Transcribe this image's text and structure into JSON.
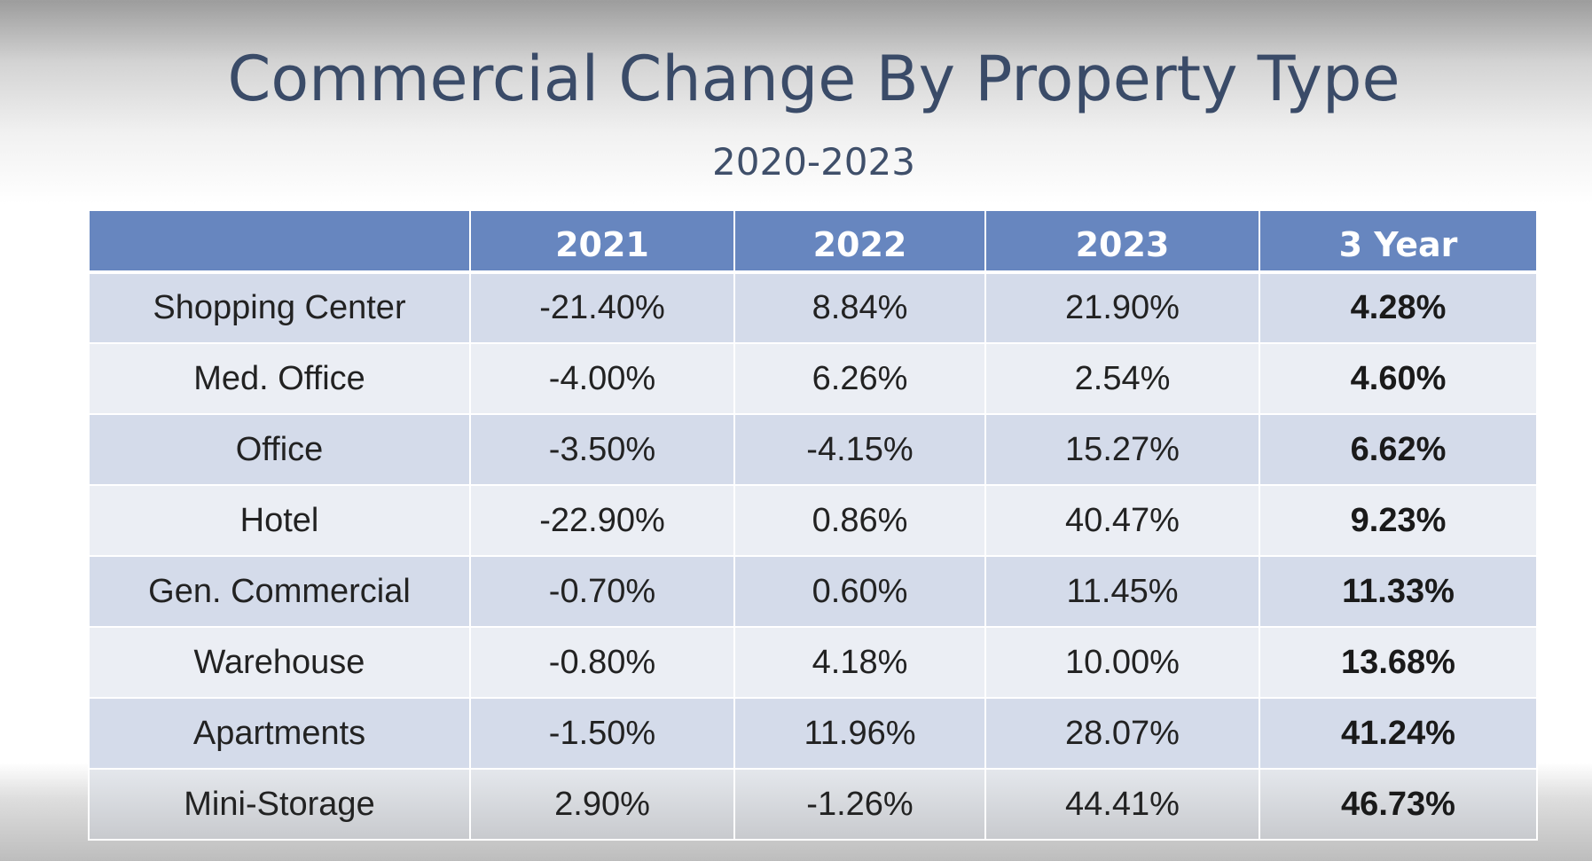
{
  "title": "Commercial Change By Property Type",
  "subtitle": "2020-2023",
  "chart_data": {
    "type": "table",
    "title": "Commercial Change By Property Type",
    "subtitle": "2020-2023",
    "columns": [
      "",
      "2021",
      "2022",
      "2023",
      "3 Year"
    ],
    "rows": [
      [
        "Shopping Center",
        "-21.40%",
        "8.84%",
        "21.90%",
        "4.28%"
      ],
      [
        "Med. Office",
        "-4.00%",
        "6.26%",
        "2.54%",
        "4.60%"
      ],
      [
        "Office",
        "-3.50%",
        "-4.15%",
        "15.27%",
        "6.62%"
      ],
      [
        "Hotel",
        "-22.90%",
        "0.86%",
        "40.47%",
        "9.23%"
      ],
      [
        "Gen. Commercial",
        "-0.70%",
        "0.60%",
        "11.45%",
        "11.33%"
      ],
      [
        "Warehouse",
        "-0.80%",
        "4.18%",
        "10.00%",
        "13.68%"
      ],
      [
        "Apartments",
        "-1.50%",
        "11.96%",
        "28.07%",
        "41.24%"
      ],
      [
        "Mini-Storage",
        "2.90%",
        "-1.26%",
        "44.41%",
        "46.73%"
      ]
    ]
  },
  "colors": {
    "header_bg": "#6786bf",
    "row_band_dark": "#d4dbea",
    "row_band_light": "#ebeef4",
    "title_text": "#3a4b68"
  }
}
